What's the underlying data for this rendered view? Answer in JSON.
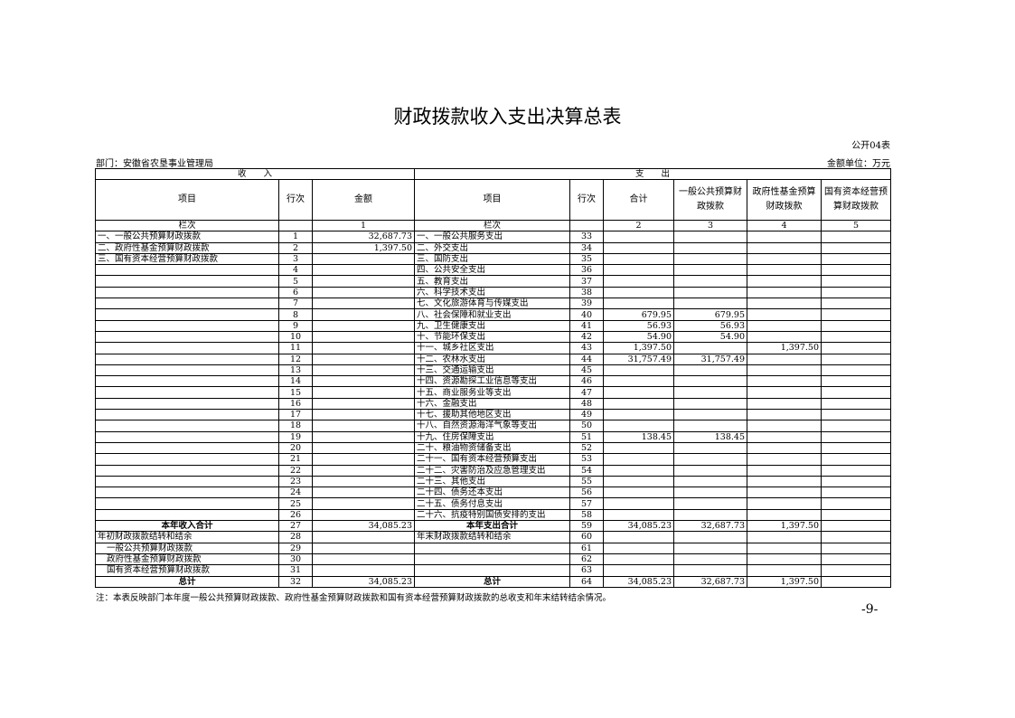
{
  "title": "财政拨款收入支出决算总表",
  "form_code": "公开04表",
  "department": "部门：安徽省农垦事业管理局",
  "unit": "金额单位：万元",
  "header": {
    "income": "收　　入",
    "expense": "支　　出",
    "item": "项目",
    "line": "行次",
    "amount": "金额",
    "total": "合计",
    "general": "一般公共预算财政拨款",
    "fund": "政府性基金预算财政拨款",
    "state": "国有资本经营预算财政拨款"
  },
  "col_index": {
    "label": "栏次",
    "c1": "1",
    "c2": "2",
    "c3": "3",
    "c4": "4",
    "c5": "5"
  },
  "rows": [
    [
      "一、一般公共预算财政拨款",
      "1",
      "32,687.73",
      "一、一般公共服务支出",
      "33",
      "",
      "",
      "",
      ""
    ],
    [
      "二、政府性基金预算财政拨款",
      "2",
      "1,397.50",
      "二、外交支出",
      "34",
      "",
      "",
      "",
      ""
    ],
    [
      "三、国有资本经营预算财政拨款",
      "3",
      "",
      "三、国防支出",
      "35",
      "",
      "",
      "",
      ""
    ],
    [
      "",
      "4",
      "",
      "四、公共安全支出",
      "36",
      "",
      "",
      "",
      ""
    ],
    [
      "",
      "5",
      "",
      "五、教育支出",
      "37",
      "",
      "",
      "",
      ""
    ],
    [
      "",
      "6",
      "",
      "六、科学技术支出",
      "38",
      "",
      "",
      "",
      ""
    ],
    [
      "",
      "7",
      "",
      "七、文化旅游体育与传媒支出",
      "39",
      "",
      "",
      "",
      ""
    ],
    [
      "",
      "8",
      "",
      "八、社会保障和就业支出",
      "40",
      "679.95",
      "679.95",
      "",
      ""
    ],
    [
      "",
      "9",
      "",
      "九、卫生健康支出",
      "41",
      "56.93",
      "56.93",
      "",
      ""
    ],
    [
      "",
      "10",
      "",
      "十、节能环保支出",
      "42",
      "54.90",
      "54.90",
      "",
      ""
    ],
    [
      "",
      "11",
      "",
      "十一、城乡社区支出",
      "43",
      "1,397.50",
      "",
      "1,397.50",
      ""
    ],
    [
      "",
      "12",
      "",
      "十二、农林水支出",
      "44",
      "31,757.49",
      "31,757.49",
      "",
      ""
    ],
    [
      "",
      "13",
      "",
      "十三、交通运输支出",
      "45",
      "",
      "",
      "",
      ""
    ],
    [
      "",
      "14",
      "",
      "十四、资源勘探工业信息等支出",
      "46",
      "",
      "",
      "",
      ""
    ],
    [
      "",
      "15",
      "",
      "十五、商业服务业等支出",
      "47",
      "",
      "",
      "",
      ""
    ],
    [
      "",
      "16",
      "",
      "十六、金融支出",
      "48",
      "",
      "",
      "",
      ""
    ],
    [
      "",
      "17",
      "",
      "十七、援助其他地区支出",
      "49",
      "",
      "",
      "",
      ""
    ],
    [
      "",
      "18",
      "",
      "十八、自然资源海洋气象等支出",
      "50",
      "",
      "",
      "",
      ""
    ],
    [
      "",
      "19",
      "",
      "十九、住房保障支出",
      "51",
      "138.45",
      "138.45",
      "",
      ""
    ],
    [
      "",
      "20",
      "",
      "二十、粮油物资储备支出",
      "52",
      "",
      "",
      "",
      ""
    ],
    [
      "",
      "21",
      "",
      "二十一、国有资本经营预算支出",
      "53",
      "",
      "",
      "",
      ""
    ],
    [
      "",
      "22",
      "",
      "二十二、灾害防治及应急管理支出",
      "54",
      "",
      "",
      "",
      ""
    ],
    [
      "",
      "23",
      "",
      "二十三、其他支出",
      "55",
      "",
      "",
      "",
      ""
    ],
    [
      "",
      "24",
      "",
      "二十四、债务还本支出",
      "56",
      "",
      "",
      "",
      ""
    ],
    [
      "",
      "25",
      "",
      "二十五、债务付息支出",
      "57",
      "",
      "",
      "",
      ""
    ],
    [
      "",
      "26",
      "",
      "二十六、抗疫特别国债安排的支出",
      "58",
      "",
      "",
      "",
      ""
    ],
    [
      "本年收入合计",
      "27",
      "34,085.23",
      "本年支出合计",
      "59",
      "34,085.23",
      "32,687.73",
      "1,397.50",
      ""
    ],
    [
      "年初财政拨款结转和结余",
      "28",
      "",
      "年末财政拨款结转和结余",
      "60",
      "",
      "",
      "",
      ""
    ],
    [
      "一般公共预算财政拨款",
      "29",
      "",
      "",
      "61",
      "",
      "",
      "",
      ""
    ],
    [
      "政府性基金预算财政拨款",
      "30",
      "",
      "",
      "62",
      "",
      "",
      "",
      ""
    ],
    [
      "国有资本经营预算财政拨款",
      "31",
      "",
      "",
      "63",
      "",
      "",
      "",
      ""
    ],
    [
      "总计",
      "32",
      "34,085.23",
      "总计",
      "64",
      "34,085.23",
      "32,687.73",
      "1,397.50",
      ""
    ]
  ],
  "note": "注：本表反映部门本年度一般公共预算财政拨款、政府性基金预算财政拨款和国有资本经营预算财政拨款的总收支和年末结转结余情况。",
  "page_number": "-9-"
}
